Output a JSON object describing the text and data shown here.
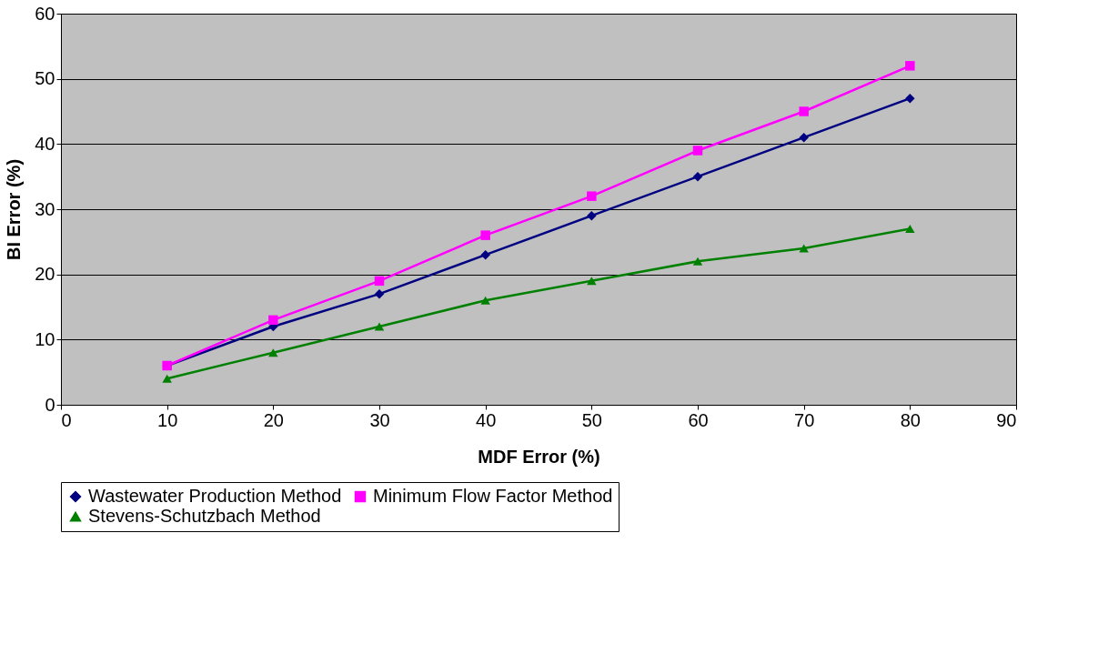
{
  "chart_data": {
    "type": "line",
    "xlabel": "MDF Error (%)",
    "ylabel": "BI Error (%)",
    "x": [
      10,
      20,
      30,
      40,
      50,
      60,
      70,
      80
    ],
    "xlim": [
      0,
      90
    ],
    "xticks": [
      0,
      10,
      20,
      30,
      40,
      50,
      60,
      70,
      80,
      90
    ],
    "ylim": [
      0,
      60
    ],
    "yticks": [
      0,
      10,
      20,
      30,
      40,
      50,
      60
    ],
    "grid": "y",
    "legend": "bottom",
    "series": [
      {
        "name": "Wastewater Production Method",
        "color": "#000080",
        "marker": "diamond",
        "values": [
          6,
          12,
          17,
          23,
          29,
          35,
          41,
          47
        ]
      },
      {
        "name": "Minimum Flow Factor Method",
        "color": "#ff00ff",
        "marker": "square",
        "values": [
          6,
          13,
          19,
          26,
          32,
          39,
          45,
          52
        ]
      },
      {
        "name": "Stevens-Schutzbach Method",
        "color": "#008000",
        "marker": "triangle",
        "values": [
          4,
          8,
          12,
          16,
          19,
          22,
          24,
          27
        ]
      }
    ]
  }
}
